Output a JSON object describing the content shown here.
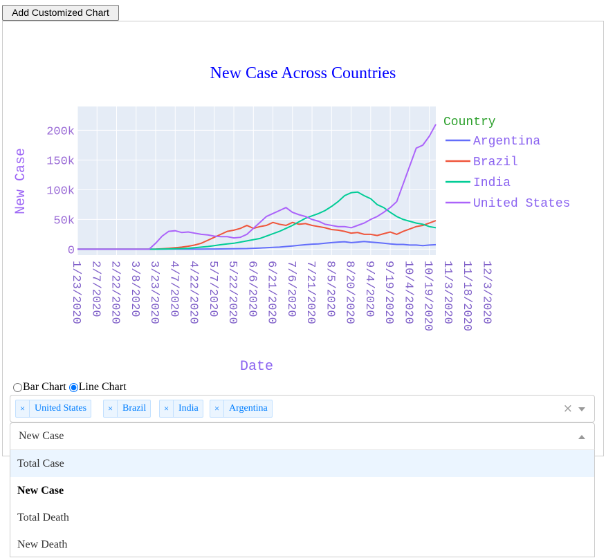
{
  "toolbar": {
    "add_button_label": "Add Customized Chart"
  },
  "chart_data": {
    "type": "line",
    "title": "New Case Across Countries",
    "xlabel": "Date",
    "ylabel": "New Case",
    "legend_title": "Country",
    "legend_position": "right",
    "grid": true,
    "ylim": [
      -10000,
      240000
    ],
    "y_ticks": [
      0,
      50000,
      100000,
      150000,
      200000
    ],
    "y_tick_labels": [
      "0",
      "50k",
      "100k",
      "150k",
      "200k"
    ],
    "x_tick_labels": [
      "1/23/2020",
      "2/7/2020",
      "2/22/2020",
      "3/8/2020",
      "3/23/2020",
      "4/7/2020",
      "4/22/2020",
      "5/7/2020",
      "5/22/2020",
      "6/6/2020",
      "6/21/2020",
      "7/6/2020",
      "7/21/2020",
      "8/5/2020",
      "8/20/2020",
      "9/4/2020",
      "9/19/2020",
      "10/4/2020",
      "10/19/2020",
      "11/3/2020",
      "11/18/2020",
      "12/3/2020"
    ],
    "x_range": [
      "1/23/2020",
      "12/8/2020"
    ],
    "x_step_days": 5,
    "series": [
      {
        "name": "Argentina",
        "color": "#636efa",
        "values": [
          0,
          0,
          0,
          0,
          0,
          0,
          0,
          0,
          0,
          0,
          0,
          0,
          0,
          50,
          100,
          100,
          100,
          150,
          200,
          250,
          300,
          400,
          500,
          600,
          700,
          900,
          1000,
          1500,
          2000,
          2500,
          3000,
          3500,
          4500,
          5500,
          6500,
          7500,
          8500,
          9000,
          10000,
          11000,
          12000,
          12500,
          11000,
          12000,
          13000,
          12000,
          11000,
          10000,
          9000,
          8000,
          8000,
          7000,
          7000,
          6000,
          7000,
          7500
        ]
      },
      {
        "name": "Brazil",
        "color": "#ef553b",
        "values": [
          0,
          0,
          0,
          0,
          0,
          0,
          0,
          0,
          0,
          0,
          0,
          0,
          200,
          800,
          1500,
          2500,
          3500,
          5000,
          7000,
          10000,
          15000,
          20000,
          25000,
          30000,
          32000,
          35000,
          40000,
          35000,
          38000,
          40000,
          45000,
          42000,
          40000,
          45000,
          42000,
          43000,
          40000,
          38000,
          36000,
          33000,
          32000,
          30000,
          27000,
          28000,
          25000,
          25000,
          23000,
          26000,
          29000,
          25000,
          30000,
          34000,
          38000,
          40000,
          44000,
          48000
        ]
      },
      {
        "name": "India",
        "color": "#00cc96",
        "values": [
          0,
          0,
          0,
          0,
          0,
          0,
          0,
          0,
          0,
          0,
          0,
          0,
          0,
          300,
          500,
          800,
          1000,
          1500,
          2500,
          3500,
          4500,
          6000,
          7500,
          9000,
          10000,
          12000,
          14000,
          16000,
          18000,
          22000,
          26000,
          30000,
          35000,
          40000,
          46000,
          52000,
          56000,
          60000,
          65000,
          72000,
          80000,
          90000,
          95000,
          96000,
          90000,
          85000,
          75000,
          70000,
          62000,
          55000,
          50000,
          47000,
          44000,
          42000,
          38000,
          36000
        ]
      },
      {
        "name": "United States",
        "color": "#ab63fa",
        "values": [
          0,
          0,
          0,
          0,
          0,
          0,
          0,
          0,
          0,
          0,
          0,
          0,
          10000,
          22000,
          30000,
          31000,
          28000,
          29000,
          27000,
          25000,
          24000,
          22000,
          21000,
          21000,
          19000,
          20000,
          25000,
          35000,
          45000,
          55000,
          60000,
          65000,
          70000,
          62000,
          58000,
          55000,
          50000,
          47000,
          42000,
          40000,
          38000,
          38000,
          36000,
          40000,
          44000,
          50000,
          55000,
          62000,
          70000,
          80000,
          110000,
          140000,
          170000,
          175000,
          190000,
          210000
        ]
      }
    ]
  },
  "chart_type_radio": [
    {
      "label": "Bar Chart",
      "checked": false
    },
    {
      "label": "Line Chart",
      "checked": true
    }
  ],
  "country_select": {
    "tags": [
      "United States",
      "Brazil",
      "India",
      "Argentina"
    ],
    "clear_symbol": "×",
    "remove_symbol": "×"
  },
  "metric_select": {
    "value": "New Case",
    "options": [
      "Total Case",
      "New Case",
      "Total Death",
      "New Death"
    ],
    "focused_option": "Total Case",
    "selected_option": "New Case"
  }
}
